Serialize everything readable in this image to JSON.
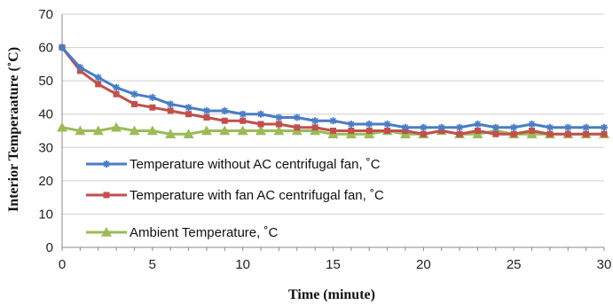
{
  "chart_data": {
    "type": "line",
    "title": "",
    "xlabel": "Time (minute)",
    "ylabel": "Interior Temperaature (˚C)",
    "xlim": [
      0,
      30
    ],
    "ylim": [
      0,
      70
    ],
    "x_ticks": [
      0,
      5,
      10,
      15,
      20,
      25,
      30
    ],
    "y_ticks": [
      0,
      10,
      20,
      30,
      40,
      50,
      60,
      70
    ],
    "grid": "horizontal",
    "legend_position": "lower-left",
    "x": [
      0,
      1,
      2,
      3,
      4,
      5,
      6,
      7,
      8,
      9,
      10,
      11,
      12,
      13,
      14,
      15,
      16,
      17,
      18,
      19,
      20,
      21,
      22,
      23,
      24,
      25,
      26,
      27,
      28,
      29,
      30
    ],
    "series": [
      {
        "name": "Temperature without AC centrifugal fan, ˚C",
        "color": "#4a7dc4",
        "marker": "star",
        "values": [
          60,
          54,
          51,
          48,
          46,
          45,
          43,
          42,
          41,
          41,
          40,
          40,
          39,
          39,
          38,
          38,
          37,
          37,
          37,
          36,
          36,
          36,
          36,
          37,
          36,
          36,
          37,
          36,
          36,
          36,
          36
        ]
      },
      {
        "name": "Temperature with fan AC centrifugal fan, ˚C",
        "color": "#c0504d",
        "marker": "square",
        "values": [
          60,
          53,
          49,
          46,
          43,
          42,
          41,
          40,
          39,
          38,
          38,
          37,
          37,
          36,
          36,
          35,
          35,
          35,
          35,
          35,
          34,
          35,
          34,
          35,
          34,
          34,
          35,
          34,
          34,
          34,
          34
        ]
      },
      {
        "name": "Ambient Temperature, ˚C",
        "color": "#9bbb59",
        "marker": "triangle",
        "values": [
          36,
          35,
          35,
          36,
          35,
          35,
          34,
          34,
          35,
          35,
          35,
          35,
          35,
          35,
          35,
          34,
          34,
          34,
          35,
          34,
          34,
          35,
          34,
          34,
          35,
          34,
          34,
          34,
          34,
          34,
          34
        ]
      }
    ]
  }
}
